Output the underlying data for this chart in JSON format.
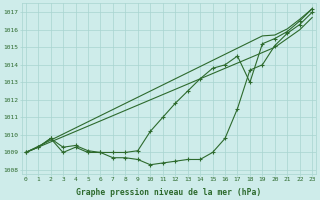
{
  "hours": [
    0,
    1,
    2,
    3,
    4,
    5,
    6,
    7,
    8,
    9,
    10,
    11,
    12,
    13,
    14,
    15,
    16,
    17,
    18,
    19,
    20,
    21,
    22,
    23
  ],
  "line_low": [
    1009.0,
    1009.3,
    1009.8,
    1009.0,
    1009.3,
    1009.0,
    1009.0,
    1008.7,
    1008.7,
    1008.6,
    1008.3,
    1008.4,
    1008.5,
    1008.6,
    1008.6,
    1009.0,
    1009.8,
    1011.5,
    1013.7,
    1014.0,
    1015.1,
    1015.8,
    1016.3,
    1017.0
  ],
  "line_high": [
    1009.0,
    1009.3,
    1009.8,
    1009.3,
    1009.4,
    1009.1,
    1009.0,
    1009.0,
    1009.0,
    1009.1,
    1010.2,
    1011.0,
    1011.8,
    1012.5,
    1013.2,
    1013.8,
    1014.0,
    1014.5,
    1013.0,
    1015.2,
    1015.5,
    1015.9,
    1016.5,
    1017.2
  ],
  "line_straight1": [
    1009.0,
    1009.35,
    1009.7,
    1010.05,
    1010.4,
    1010.75,
    1011.1,
    1011.45,
    1011.8,
    1012.15,
    1012.5,
    1012.85,
    1013.2,
    1013.55,
    1013.9,
    1014.25,
    1014.6,
    1014.95,
    1015.3,
    1015.65,
    1015.7,
    1016.05,
    1016.6,
    1017.2
  ],
  "line_straight2": [
    1009.0,
    1009.3,
    1009.6,
    1009.9,
    1010.2,
    1010.5,
    1010.8,
    1011.1,
    1011.4,
    1011.7,
    1012.0,
    1012.3,
    1012.6,
    1012.9,
    1013.2,
    1013.5,
    1013.8,
    1014.1,
    1014.4,
    1014.7,
    1015.0,
    1015.5,
    1016.0,
    1016.7
  ],
  "line_color": "#2d6a2d",
  "bg_color": "#ceecea",
  "grid_color": "#a8d5d0",
  "text_color": "#2d6a2d",
  "xlabel_text": "Graphe pression niveau de la mer (hPa)",
  "ylim": [
    1007.8,
    1017.5
  ],
  "yticks": [
    1008,
    1009,
    1010,
    1011,
    1012,
    1013,
    1014,
    1015,
    1016,
    1017
  ],
  "xlim": [
    -0.3,
    23.3
  ]
}
